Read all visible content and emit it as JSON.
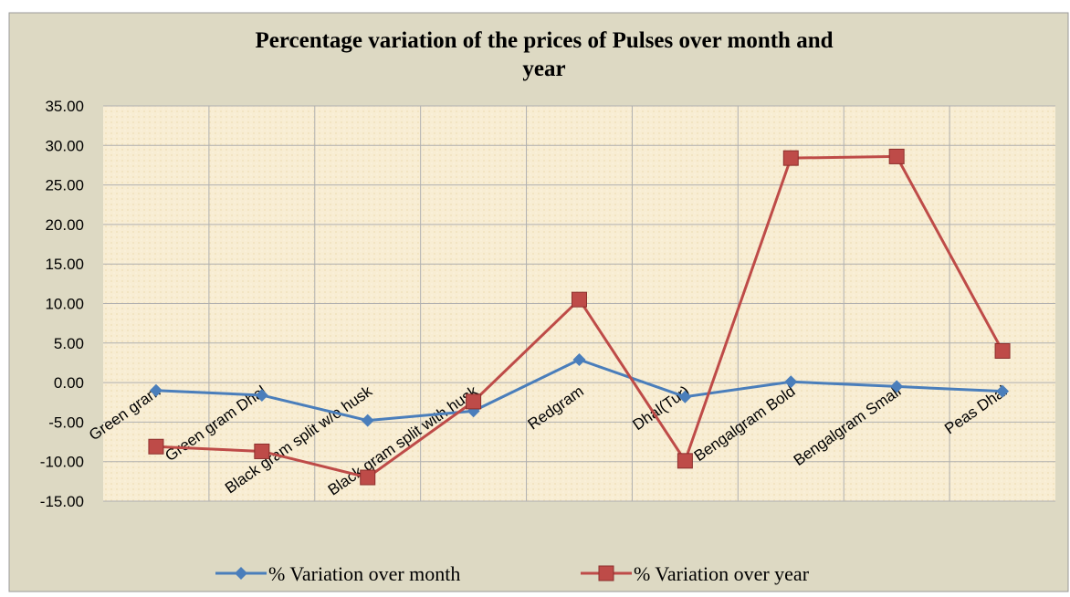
{
  "chart_data": {
    "type": "line",
    "title": "Percentage variation of the prices of Pulses over month and year",
    "categories": [
      "Green gram",
      "Green gram Dhal",
      "Black gram  split w/o husk",
      "Black gram split with husk",
      "Redgram",
      "Dhal(Tur)",
      "Bengalgram Bold",
      "Bengalgram Small",
      "Peas Dhal"
    ],
    "series": [
      {
        "name": "%  Variation over month",
        "color": "#4a7ebb",
        "marker": "diamond",
        "values": [
          -1.0,
          -1.6,
          -4.8,
          -3.6,
          2.9,
          -1.8,
          0.1,
          -0.5,
          -1.1
        ]
      },
      {
        "name": "%  Variation over year",
        "color": "#be4b48",
        "marker": "square",
        "values": [
          -8.1,
          -8.7,
          -12.0,
          -2.4,
          10.5,
          -9.9,
          28.4,
          28.6,
          4.0
        ]
      }
    ],
    "ylim": [
      -15,
      35
    ],
    "yticks": [
      {
        "value": -15,
        "label": "-15.00"
      },
      {
        "value": -10,
        "label": "-10.00"
      },
      {
        "value": -5,
        "label": "-5.00"
      },
      {
        "value": 0,
        "label": "0.00"
      },
      {
        "value": 5,
        "label": "5.00"
      },
      {
        "value": 10,
        "label": "10.00"
      },
      {
        "value": 15,
        "label": "15.00"
      },
      {
        "value": 20,
        "label": "20.00"
      },
      {
        "value": 25,
        "label": "25.00"
      },
      {
        "value": 30,
        "label": "30.00"
      },
      {
        "value": 35,
        "label": "35.00"
      }
    ],
    "grid": true,
    "legend": "bottom"
  }
}
